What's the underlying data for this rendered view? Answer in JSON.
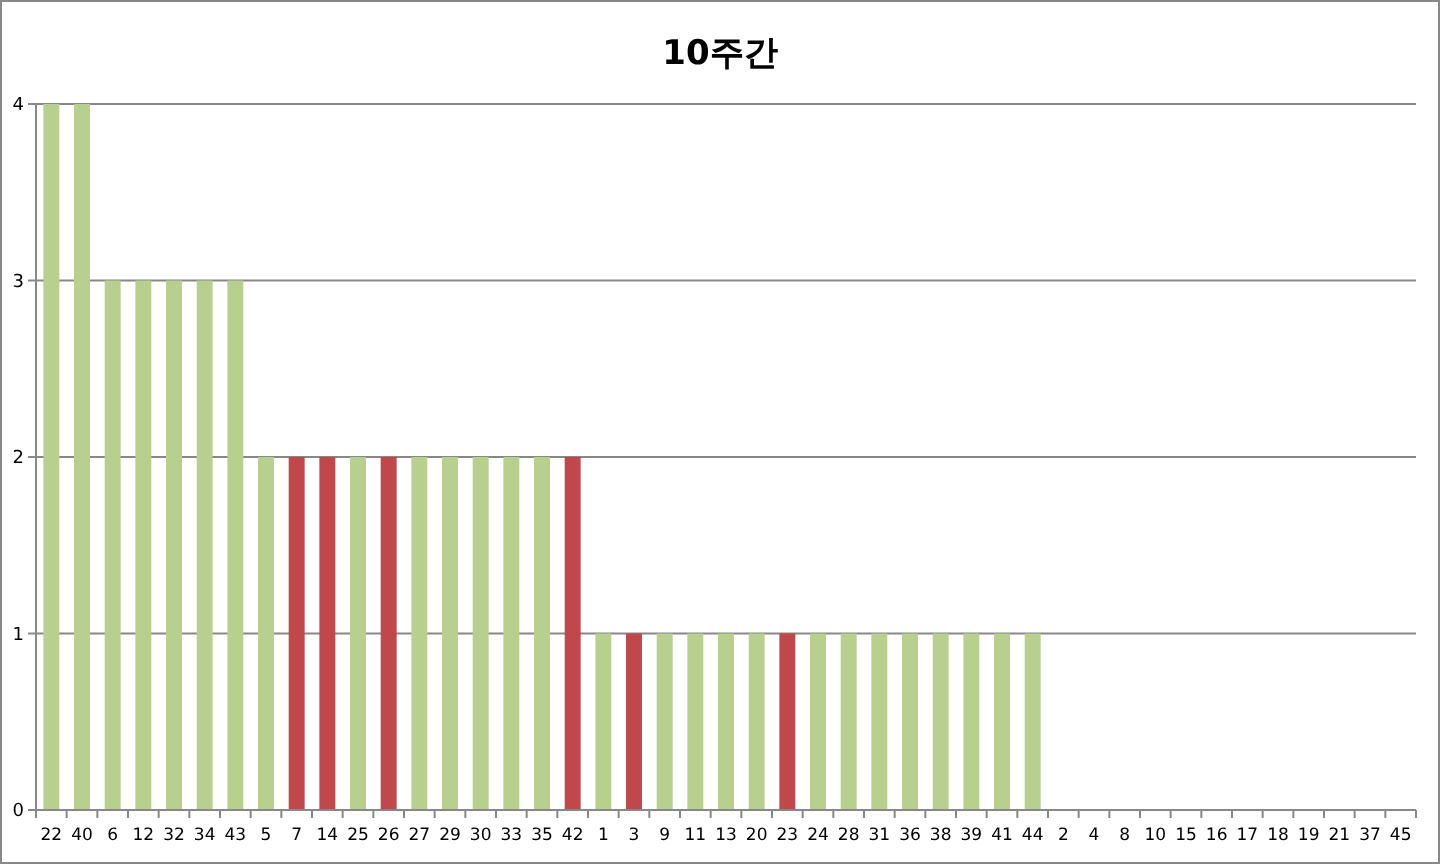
{
  "chart_data": {
    "type": "bar",
    "title": "10주간",
    "categories": [
      "22",
      "40",
      "6",
      "12",
      "32",
      "34",
      "43",
      "5",
      "7",
      "14",
      "25",
      "26",
      "27",
      "29",
      "30",
      "33",
      "35",
      "42",
      "1",
      "3",
      "9",
      "11",
      "13",
      "20",
      "23",
      "24",
      "28",
      "31",
      "36",
      "38",
      "39",
      "41",
      "44",
      "2",
      "4",
      "8",
      "10",
      "15",
      "16",
      "17",
      "18",
      "19",
      "21",
      "37",
      "45"
    ],
    "values": [
      4,
      4,
      3,
      3,
      3,
      3,
      3,
      2,
      2,
      2,
      2,
      2,
      2,
      2,
      2,
      2,
      2,
      2,
      1,
      1,
      1,
      1,
      1,
      1,
      1,
      1,
      1,
      1,
      1,
      1,
      1,
      1,
      1,
      0,
      0,
      0,
      0,
      0,
      0,
      0,
      0,
      0,
      0,
      0,
      0
    ],
    "colors": [
      "#b8cf8e",
      "#b8cf8e",
      "#b8cf8e",
      "#b8cf8e",
      "#b8cf8e",
      "#b8cf8e",
      "#b8cf8e",
      "#b8cf8e",
      "#c0474a",
      "#c0474a",
      "#b8cf8e",
      "#c0474a",
      "#b8cf8e",
      "#b8cf8e",
      "#b8cf8e",
      "#b8cf8e",
      "#b8cf8e",
      "#c0474a",
      "#b8cf8e",
      "#c0474a",
      "#b8cf8e",
      "#b8cf8e",
      "#b8cf8e",
      "#b8cf8e",
      "#c0474a",
      "#b8cf8e",
      "#b8cf8e",
      "#b8cf8e",
      "#b8cf8e",
      "#b8cf8e",
      "#b8cf8e",
      "#b8cf8e",
      "#b8cf8e",
      "#b8cf8e",
      "#b8cf8e",
      "#b8cf8e",
      "#b8cf8e",
      "#b8cf8e",
      "#b8cf8e",
      "#b8cf8e",
      "#b8cf8e",
      "#b8cf8e",
      "#b8cf8e",
      "#b8cf8e",
      "#b8cf8e"
    ],
    "ylim": [
      0,
      4
    ],
    "yticks": [
      0,
      1,
      2,
      3,
      4
    ],
    "grid": "y"
  }
}
